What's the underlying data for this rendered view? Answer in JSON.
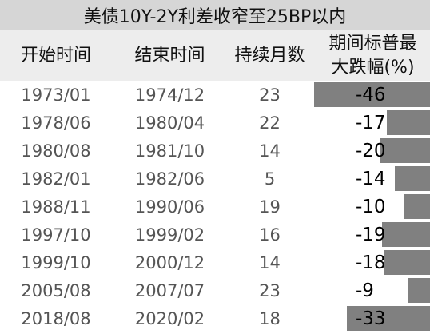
{
  "chart_data": {
    "type": "table",
    "title": "美债10Y-2Y利差收窄至25BP以内",
    "columns": [
      "开始时间",
      "结束时间",
      "持续月数",
      "期间标普最大跌幅(%)"
    ],
    "header_last_lines": [
      "期间标普最",
      "大跌幅(%)"
    ],
    "rows": [
      {
        "start": "1973/01",
        "end": "1974/12",
        "months": 23,
        "max_drop": -46
      },
      {
        "start": "1978/06",
        "end": "1980/04",
        "months": 22,
        "max_drop": -17
      },
      {
        "start": "1980/08",
        "end": "1981/10",
        "months": 14,
        "max_drop": -20
      },
      {
        "start": "1982/01",
        "end": "1982/06",
        "months": 5,
        "max_drop": -14
      },
      {
        "start": "1988/11",
        "end": "1990/06",
        "months": 19,
        "max_drop": -10
      },
      {
        "start": "1997/10",
        "end": "1999/02",
        "months": 16,
        "max_drop": -19
      },
      {
        "start": "1999/10",
        "end": "2000/12",
        "months": 14,
        "max_drop": -18
      },
      {
        "start": "2005/08",
        "end": "2007/07",
        "months": 23,
        "max_drop": -9
      },
      {
        "start": "2018/08",
        "end": "2020/02",
        "months": 18,
        "max_drop": -33
      }
    ],
    "bar_color": "#808080"
  }
}
